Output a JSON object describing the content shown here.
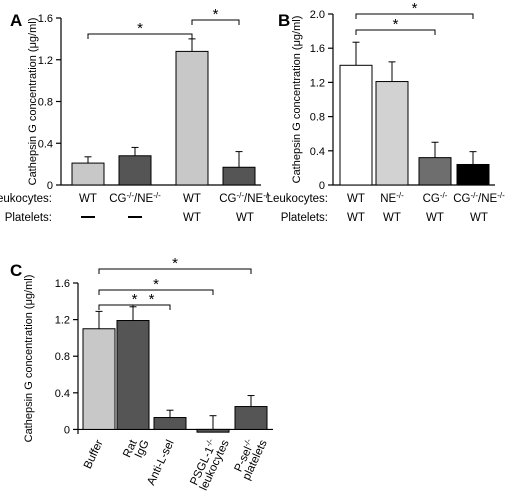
{
  "chart_data": [
    {
      "type": "bar",
      "panel_label": "A",
      "ylabel": "Cathepsin G concentration (μg/ml)",
      "ylim": [
        0,
        1.6
      ],
      "yticks": [
        "0",
        "0.4",
        "0.8",
        "1.2",
        "1.6"
      ],
      "values": [
        0.21,
        0.28,
        1.28,
        0.17
      ],
      "errors": [
        0.06,
        0.08,
        0.12,
        0.15
      ],
      "colors": [
        "#c8c8c8",
        "#555555",
        "#c8c8c8",
        "#555555"
      ],
      "rows": [
        {
          "label": "Leukocytes:",
          "cells": [
            "WT",
            "CG-/-/NE-/-",
            "WT",
            "CG-/-/NE-/-"
          ]
        },
        {
          "label": "Platelets:",
          "cells": [
            "—",
            "—",
            "WT",
            "WT"
          ]
        }
      ],
      "significance": [
        {
          "from": 0,
          "to": 2,
          "mark": "*"
        },
        {
          "from": 2,
          "to": 3,
          "mark": "*"
        }
      ]
    },
    {
      "type": "bar",
      "panel_label": "B",
      "ylabel": "Cathepsin G concentration (μg/ml)",
      "ylim": [
        0,
        2.0
      ],
      "yticks": [
        "0",
        "0.4",
        "0.8",
        "1.2",
        "1.6",
        "2.0"
      ],
      "values": [
        1.4,
        1.21,
        0.32,
        0.24
      ],
      "errors": [
        0.27,
        0.23,
        0.18,
        0.15
      ],
      "colors": [
        "#ffffff",
        "#d2d2d2",
        "#6e6e6e",
        "#000000"
      ],
      "rows": [
        {
          "label": "Leukocytes:",
          "cells": [
            "WT",
            "NE-/-",
            "CG-/-",
            "CG-/-/NE-/-"
          ]
        },
        {
          "label": "Platelets:",
          "cells": [
            "WT",
            "WT",
            "WT",
            "WT"
          ]
        }
      ],
      "significance": [
        {
          "from": 0,
          "to": 2,
          "mark": "*"
        },
        {
          "from": 0,
          "to": 3,
          "mark": "*"
        }
      ]
    },
    {
      "type": "bar",
      "panel_label": "C",
      "ylabel": "Cathepsin G concentration (μg/ml)",
      "ylim": [
        -0.05,
        1.6
      ],
      "yticks": [
        "0",
        "0.4",
        "0.8",
        "1.2",
        "1.6"
      ],
      "categories": [
        "Buffer",
        "Rat IgG",
        "Anti-L-sel",
        "PSGL-1-/- leukocytes",
        "P-sel-/- platelets"
      ],
      "values": [
        1.1,
        1.19,
        0.13,
        -0.03,
        0.25
      ],
      "errors": [
        0.19,
        0.15,
        0.08,
        0.18,
        0.12
      ],
      "colors": [
        "#c8c8c8",
        "#555555",
        "#555555",
        "#555555",
        "#555555"
      ],
      "significance": [
        {
          "from": 0,
          "to": 4,
          "mark": "*"
        },
        {
          "from": 0,
          "to": 3,
          "mark": "*"
        },
        {
          "from": 1,
          "to": 2,
          "mark": "*"
        },
        {
          "from": 0,
          "to": 2,
          "mark": "*"
        }
      ]
    }
  ]
}
